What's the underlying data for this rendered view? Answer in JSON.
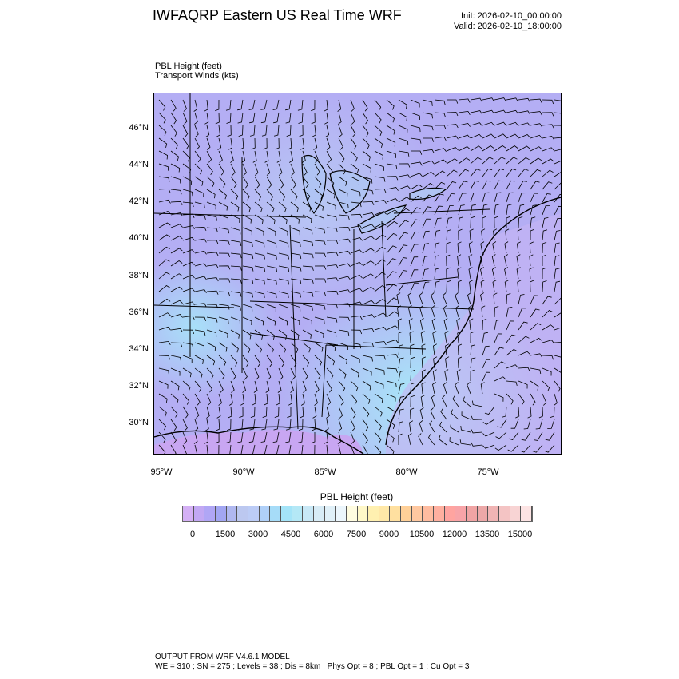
{
  "header": {
    "title": "IWFAQRP Eastern US Real Time WRF",
    "init": "Init: 2026-02-10_00:00:00",
    "valid": "Valid: 2026-02-10_18:00:00"
  },
  "subtitle": {
    "line1": "PBL Height   (feet)",
    "line2": "Transport Winds   (kts)"
  },
  "map": {
    "lat_labels": [
      "46°N",
      "44°N",
      "42°N",
      "40°N",
      "38°N",
      "36°N",
      "34°N",
      "32°N",
      "30°N"
    ],
    "lon_labels": [
      "95°W",
      "90°W",
      "85°W",
      "80°W",
      "75°W"
    ],
    "field": "PBL Height",
    "overlay": "wind barbs"
  },
  "colorbar": {
    "title": "PBL Height  (feet)",
    "labels": [
      "0",
      "1500",
      "3000",
      "4500",
      "6000",
      "7500",
      "9000",
      "10500",
      "12000",
      "13500",
      "15000"
    ],
    "colors": [
      "#d4b0f5",
      "#c2a8f3",
      "#b0a6f5",
      "#a2a6f2",
      "#b0b8f0",
      "#bcc8f0",
      "#bcccf6",
      "#b0d0f8",
      "#a6dcf8",
      "#a4e4f8",
      "#b4e8f6",
      "#c8e8f6",
      "#d8ecf6",
      "#e0f0f8",
      "#ecf6fc",
      "#fffce0",
      "#fff8c8",
      "#fff0b0",
      "#ffe8a8",
      "#ffe0a0",
      "#ffd098",
      "#ffc8a0",
      "#ffbca0",
      "#ffb0a0",
      "#ffa4a0",
      "#f8a4a8",
      "#f0a4a4",
      "#eca8a8",
      "#f0b4b4",
      "#f4c4c4",
      "#f8d4d4",
      "#fde4e4"
    ]
  },
  "footer": {
    "line1": "OUTPUT FROM WRF V4.6.1 MODEL",
    "line2": "WE = 310 ; SN = 275 ; Levels = 38 ; Dis = 8km ; Phys Opt = 8 ; PBL Opt = 1 ; Cu Opt = 3"
  }
}
